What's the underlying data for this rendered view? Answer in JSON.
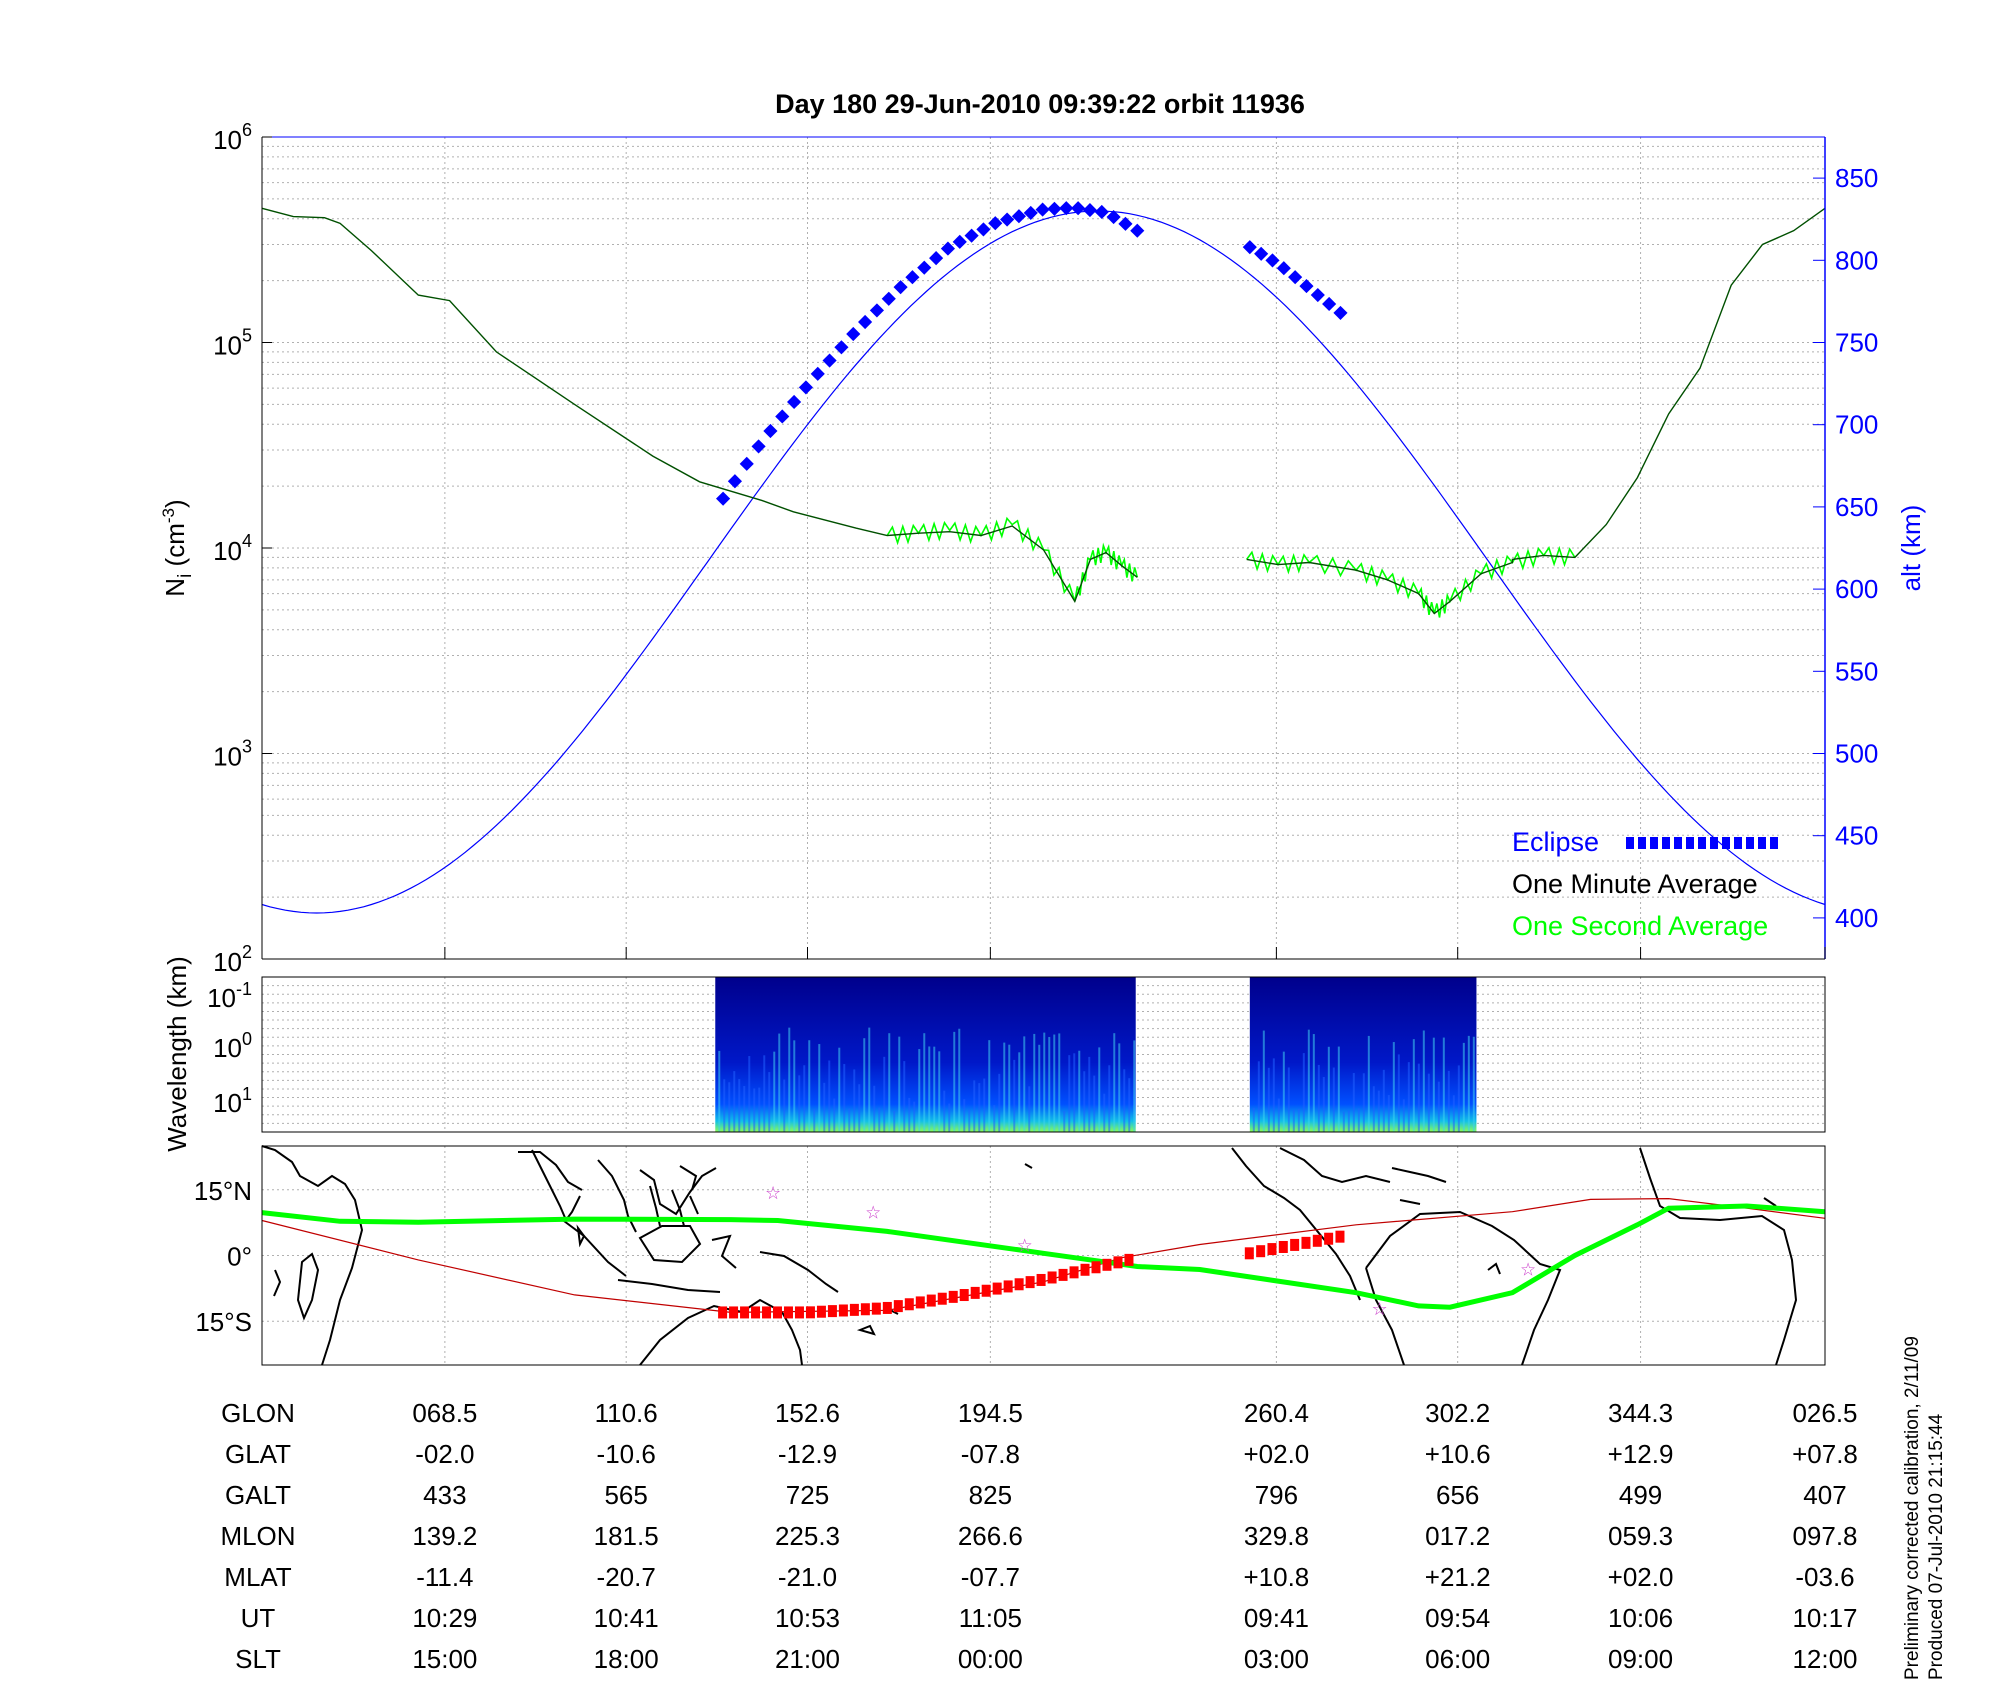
{
  "title": "Day 180  29-Jun-2010 09:39:22   orbit 11936",
  "colors": {
    "minute": "#005000",
    "second": "#00ff00",
    "altitude": "#0000ff",
    "eclipse": "#0000ff",
    "track_ground": "#00ff00",
    "track_magnetic": "#c00000",
    "eclipse_map": "#ff0000",
    "star": "#cc44cc"
  },
  "chart_data": [
    {
      "type": "line",
      "panel": "density",
      "y_axis": {
        "label_main": "N",
        "label_sub": "i",
        "label_unit": "(cm",
        "label_exp": "-3",
        "label_close": ")",
        "scale": "log",
        "ylim": [
          100,
          1000000
        ],
        "tick_bases": [
          "10",
          "10",
          "10",
          "10",
          "10"
        ],
        "tick_exps": [
          "2",
          "3",
          "4",
          "5",
          "6"
        ]
      },
      "y2_axis": {
        "label": "alt (km)",
        "ylim": [
          375,
          875
        ],
        "ticks": [
          "400",
          "450",
          "500",
          "550",
          "600",
          "650",
          "700",
          "750",
          "800",
          "850"
        ]
      },
      "x_orbit_fraction_range": [
        0,
        1
      ],
      "series": [
        {
          "name": "One Minute Average",
          "x": [
            0,
            0.02,
            0.04,
            0.05,
            0.07,
            0.1,
            0.12,
            0.15,
            0.2,
            0.25,
            0.28,
            0.32,
            0.34,
            0.38,
            0.4,
            0.42,
            0.44,
            0.46,
            0.48,
            0.5,
            0.52,
            0.53,
            0.54,
            0.55,
            0.56
          ],
          "values": [
            450000,
            410000,
            405000,
            380000,
            280000,
            170000,
            160000,
            90000,
            50000,
            28000,
            21000,
            17000,
            15000,
            12500,
            11500,
            11800,
            12000,
            11500,
            12800,
            9800,
            5500,
            8800,
            9500,
            8200,
            7200
          ]
        },
        {
          "name": "One Minute Average",
          "x": [
            0.63,
            0.65,
            0.67,
            0.7,
            0.72,
            0.74,
            0.75,
            0.76,
            0.78,
            0.8,
            0.8,
            0.82,
            0.84,
            0.86,
            0.88,
            0.9,
            0.92,
            0.94,
            0.96,
            0.98,
            1
          ],
          "values": [
            8800,
            8300,
            8500,
            7800,
            7000,
            6000,
            4800,
            5500,
            7500,
            8500,
            8800,
            9200,
            9000,
            13000,
            22000,
            45000,
            75000,
            190000,
            300000,
            350000,
            450000
          ]
        },
        {
          "name": "One Second Average",
          "x": [
            0.4,
            0.42,
            0.44,
            0.46,
            0.48,
            0.5,
            0.52,
            0.53,
            0.54,
            0.55,
            0.56
          ],
          "values": [
            11500,
            11800,
            12200,
            11500,
            13000,
            9800,
            5500,
            8800,
            9500,
            8200,
            7200
          ]
        },
        {
          "name": "One Second Average",
          "x": [
            0.63,
            0.65,
            0.67,
            0.7,
            0.72,
            0.74,
            0.75,
            0.76,
            0.78,
            0.8,
            0.82,
            0.84
          ],
          "values": [
            8800,
            8300,
            8500,
            7800,
            7000,
            6000,
            4800,
            5500,
            7500,
            8500,
            9200,
            9000
          ]
        },
        {
          "name": "Eclipse",
          "x": [
            0.295,
            0.32,
            0.35,
            0.38,
            0.41,
            0.44,
            0.47,
            0.5,
            0.52,
            0.54,
            0.56
          ],
          "values": [
            655,
            690,
            725,
            757,
            785,
            808,
            823,
            831,
            832,
            829,
            818
          ]
        },
        {
          "name": "Eclipse",
          "x": [
            0.632,
            0.65,
            0.67,
            0.69
          ],
          "values": [
            808,
            798,
            783,
            768
          ]
        }
      ],
      "legend": {
        "placement": "bottom-right",
        "entries": [
          "Eclipse",
          "One Minute Average",
          "One Second Average"
        ]
      },
      "grid": true
    },
    {
      "type": "heatmap",
      "panel": "spectrogram",
      "y_axis": {
        "label": "Wavelength (km)",
        "tick_bases": [
          "10",
          "10",
          "10"
        ],
        "tick_exps": [
          "-1",
          "0",
          "1"
        ]
      },
      "segments_x": [
        [
          0.29,
          0.559
        ],
        [
          0.632,
          0.777
        ]
      ]
    },
    {
      "type": "line",
      "panel": "map",
      "y_axis": {
        "ticks": [
          "15°N",
          "0°",
          "15°S"
        ],
        "lat_values": [
          15,
          0,
          -15
        ],
        "ylim": [
          -25,
          25
        ]
      },
      "series": [
        {
          "name": "ground track",
          "x": [
            0,
            0.05,
            0.1,
            0.2,
            0.3,
            0.33,
            0.4,
            0.5,
            0.56,
            0.6,
            0.7,
            0.74,
            0.76,
            0.8,
            0.84,
            0.88,
            0.9,
            0.95,
            1
          ],
          "values": [
            9.8,
            7.8,
            7.6,
            8.3,
            8.2,
            8,
            5.5,
            0.5,
            -2.5,
            -3.2,
            -8.5,
            -11.5,
            -11.8,
            -8.5,
            0,
            7,
            10.8,
            11.3,
            10
          ]
        },
        {
          "name": "magnetic equator",
          "x": [
            0,
            0.1,
            0.2,
            0.3,
            0.4,
            0.5,
            0.55,
            0.6,
            0.7,
            0.8,
            0.85,
            0.9,
            0.95,
            1
          ],
          "values": [
            8,
            -1,
            -9,
            -13,
            -12.5,
            -6,
            -0.5,
            2.5,
            7,
            10,
            12.8,
            13,
            10.8,
            8.5
          ]
        },
        {
          "name": "eclipse",
          "x": [
            0.295,
            0.35,
            0.4,
            0.45,
            0.5,
            0.53,
            0.555
          ],
          "values": [
            -13,
            -13,
            -12,
            -9,
            -5.5,
            -3,
            -1
          ]
        },
        {
          "name": "eclipse",
          "x": [
            0.632,
            0.65,
            0.67,
            0.69
          ],
          "values": [
            0.5,
            1.7,
            3,
            4.3
          ]
        }
      ],
      "stars_x": [
        0.327,
        0.391,
        0.488,
        0.715,
        0.81
      ],
      "stars_lat": [
        14.5,
        10,
        2.5,
        -12,
        -3
      ]
    }
  ],
  "x_ticks_fraction": [
    0.117,
    0.233,
    0.349,
    0.466,
    0.649,
    0.765,
    0.882,
    1
  ],
  "table": {
    "rows": [
      {
        "label": "GLON",
        "values": [
          "068.5",
          "110.6",
          "152.6",
          "194.5",
          "260.4",
          "302.2",
          "344.3",
          "026.5"
        ]
      },
      {
        "label": "GLAT",
        "values": [
          "-02.0",
          "-10.6",
          "-12.9",
          "-07.8",
          "+02.0",
          "+10.6",
          "+12.9",
          "+07.8"
        ]
      },
      {
        "label": "GALT",
        "values": [
          "433",
          "565",
          "725",
          "825",
          "796",
          "656",
          "499",
          "407"
        ]
      },
      {
        "label": "MLON",
        "values": [
          "139.2",
          "181.5",
          "225.3",
          "266.6",
          "329.8",
          "017.2",
          "059.3",
          "097.8"
        ]
      },
      {
        "label": "MLAT",
        "values": [
          "-11.4",
          "-20.7",
          "-21.0",
          "-07.7",
          "+10.8",
          "+21.2",
          "+02.0",
          "-03.6"
        ]
      },
      {
        "label": "UT",
        "values": [
          "10:29",
          "10:41",
          "10:53",
          "11:05",
          "09:41",
          "09:54",
          "10:06",
          "10:17"
        ]
      },
      {
        "label": "SLT",
        "values": [
          "15:00",
          "18:00",
          "21:00",
          "00:00",
          "03:00",
          "06:00",
          "09:00",
          "12:00"
        ]
      }
    ]
  },
  "footnote": {
    "line1": "Preliminary corrected calibration, 2/11/09",
    "line2": "Produced 07-Jul-2010 21:15:44"
  }
}
